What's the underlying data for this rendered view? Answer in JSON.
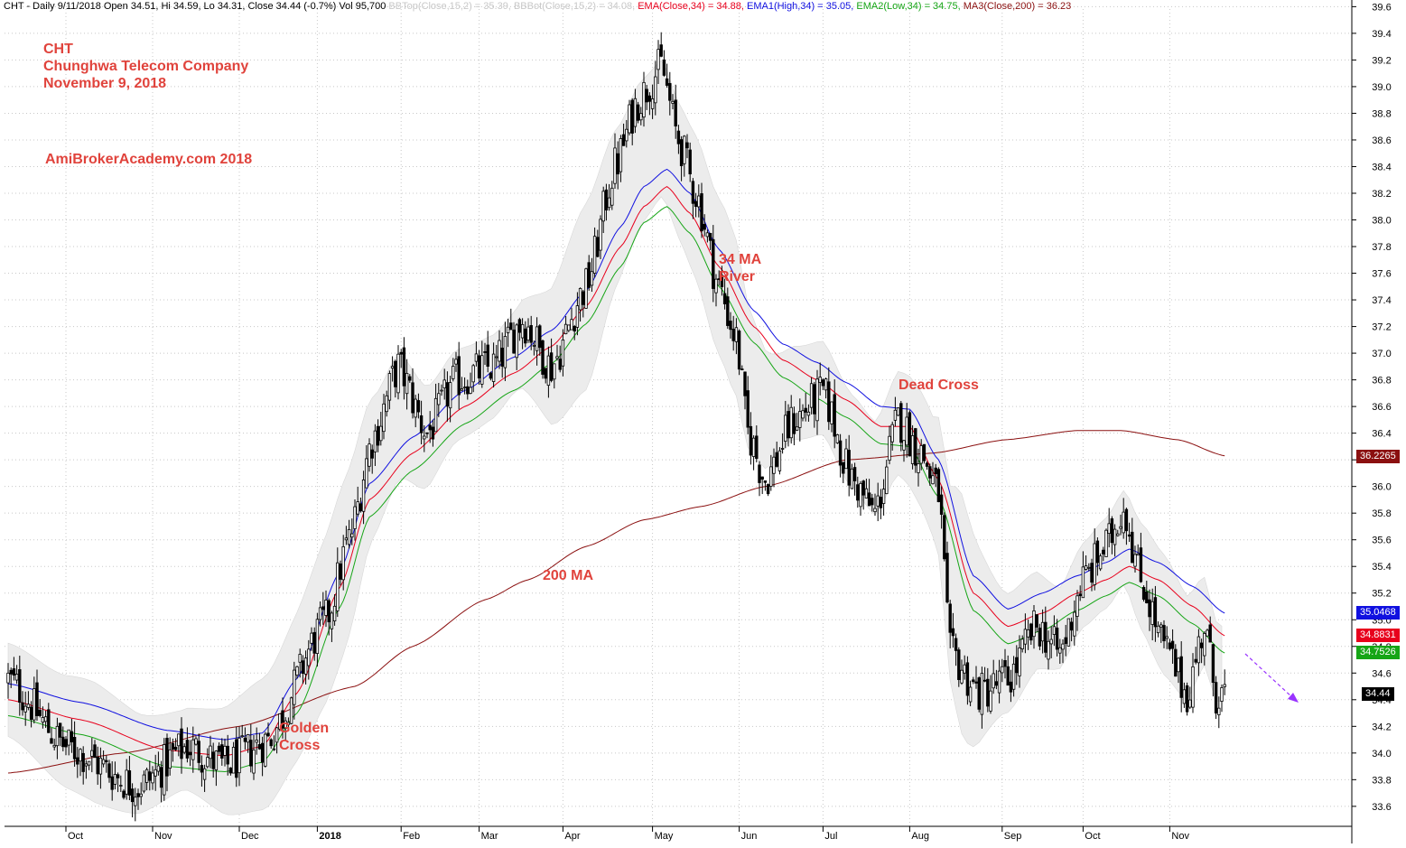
{
  "header": {
    "prefix": "CHT - Daily 9/11/2018 Open 34.51, Hi 34.59, Lo 34.31, Close 34.44 (-0.7%) Vol 95,700",
    "bbtop": "BBTop(Close,15,2) = 35.39,",
    "bbbot": "BBBot(Close,15,2) = 34.08,",
    "ema": "EMA(Close,34) = 34.88,",
    "ema1": "EMA1(High,34) = 35.05,",
    "ema2": "EMA2(Low,34) = 34.75,",
    "ma3": "MA3(Close,200) = 36.23"
  },
  "annotations": {
    "symbol": "CHT",
    "company": "Chunghwa Telecom Company",
    "date": "November 9, 2018",
    "site": "AmiBrokerAcademy.com  2018",
    "river": "34 MA\nRiver",
    "dead_cross": "Dead Cross",
    "ma200": "200 MA",
    "golden_cross": "Golden\nCross"
  },
  "colors": {
    "candle": "#000000",
    "band_fill": "#ececec",
    "ema_close": "#e8001c",
    "ema_high": "#1010e0",
    "ema_low": "#16a516",
    "ma200": "#8b1010",
    "annotation": "#e0433c",
    "arrow": "#9933ff",
    "grid": "#c8c8c8"
  },
  "chart_data": {
    "type": "candlestick",
    "x_months": [
      "Oct",
      "Nov",
      "Dec",
      "2018",
      "Feb",
      "Mar",
      "Apr",
      "May",
      "Jun",
      "Jul",
      "Aug",
      "Sep",
      "Oct",
      "Nov"
    ],
    "y_ticks": [
      33.6,
      33.8,
      34.0,
      34.2,
      34.4,
      34.6,
      34.8,
      35.0,
      35.2,
      35.4,
      35.6,
      35.8,
      36.0,
      36.2,
      36.4,
      36.6,
      36.8,
      37.0,
      37.2,
      37.4,
      37.6,
      37.8,
      38.0,
      38.2,
      38.4,
      38.6,
      38.8,
      39.0,
      39.2,
      39.4,
      39.6
    ],
    "ylim": [
      33.45,
      39.65
    ],
    "last_values": {
      "ma200": "36.2265",
      "ema_high": "35.0468",
      "ema_close": "34.8831",
      "ema_low": "34.7526",
      "close": "34.44"
    },
    "price_path": [
      [
        0,
        34.55
      ],
      [
        20,
        34.05
      ],
      [
        45,
        33.75
      ],
      [
        62,
        34.05
      ],
      [
        75,
        33.9
      ],
      [
        90,
        34.1
      ],
      [
        110,
        35.0
      ],
      [
        118,
        35.6
      ],
      [
        126,
        36.35
      ],
      [
        135,
        36.9
      ],
      [
        145,
        36.4
      ],
      [
        155,
        36.8
      ],
      [
        168,
        36.9
      ],
      [
        178,
        37.25
      ],
      [
        188,
        36.9
      ],
      [
        200,
        37.5
      ],
      [
        210,
        38.4
      ],
      [
        218,
        38.9
      ],
      [
        226,
        39.15
      ],
      [
        232,
        38.6
      ],
      [
        238,
        38.2
      ],
      [
        246,
        37.5
      ],
      [
        252,
        37.1
      ],
      [
        256,
        36.4
      ],
      [
        262,
        36.05
      ],
      [
        272,
        36.5
      ],
      [
        282,
        36.7
      ],
      [
        292,
        36.05
      ],
      [
        300,
        35.8
      ],
      [
        308,
        36.5
      ],
      [
        316,
        36.25
      ],
      [
        322,
        35.95
      ],
      [
        326,
        34.75
      ],
      [
        336,
        34.45
      ],
      [
        346,
        34.55
      ],
      [
        356,
        34.95
      ],
      [
        364,
        34.75
      ],
      [
        372,
        35.3
      ],
      [
        380,
        35.55
      ],
      [
        386,
        35.85
      ],
      [
        392,
        35.3
      ],
      [
        400,
        34.8
      ],
      [
        408,
        34.45
      ],
      [
        414,
        34.95
      ],
      [
        418,
        34.45
      ],
      [
        421,
        34.44
      ]
    ],
    "ema_close_path": [
      [
        0,
        34.4
      ],
      [
        25,
        34.25
      ],
      [
        55,
        34.02
      ],
      [
        75,
        33.98
      ],
      [
        88,
        34.05
      ],
      [
        100,
        34.45
      ],
      [
        115,
        35.25
      ],
      [
        125,
        35.9
      ],
      [
        140,
        36.25
      ],
      [
        158,
        36.6
      ],
      [
        175,
        36.85
      ],
      [
        188,
        37.05
      ],
      [
        200,
        37.35
      ],
      [
        212,
        37.8
      ],
      [
        220,
        38.1
      ],
      [
        228,
        38.25
      ],
      [
        236,
        38.05
      ],
      [
        246,
        37.65
      ],
      [
        258,
        37.2
      ],
      [
        268,
        36.95
      ],
      [
        280,
        36.8
      ],
      [
        290,
        36.65
      ],
      [
        302,
        36.45
      ],
      [
        312,
        36.45
      ],
      [
        322,
        36.05
      ],
      [
        334,
        35.2
      ],
      [
        346,
        34.95
      ],
      [
        358,
        35.05
      ],
      [
        370,
        35.2
      ],
      [
        380,
        35.3
      ],
      [
        388,
        35.4
      ],
      [
        398,
        35.3
      ],
      [
        410,
        35.1
      ],
      [
        421,
        34.88
      ]
    ],
    "ema_high_path": [
      [
        0,
        34.52
      ],
      [
        25,
        34.38
      ],
      [
        55,
        34.17
      ],
      [
        75,
        34.1
      ],
      [
        88,
        34.15
      ],
      [
        100,
        34.56
      ],
      [
        115,
        35.37
      ],
      [
        125,
        36.02
      ],
      [
        140,
        36.37
      ],
      [
        158,
        36.72
      ],
      [
        175,
        36.97
      ],
      [
        188,
        37.17
      ],
      [
        200,
        37.47
      ],
      [
        212,
        37.95
      ],
      [
        220,
        38.25
      ],
      [
        228,
        38.38
      ],
      [
        236,
        38.2
      ],
      [
        246,
        37.78
      ],
      [
        258,
        37.32
      ],
      [
        268,
        37.07
      ],
      [
        280,
        36.93
      ],
      [
        290,
        36.78
      ],
      [
        302,
        36.6
      ],
      [
        312,
        36.58
      ],
      [
        322,
        36.2
      ],
      [
        334,
        35.33
      ],
      [
        346,
        35.08
      ],
      [
        358,
        35.2
      ],
      [
        370,
        35.33
      ],
      [
        380,
        35.43
      ],
      [
        388,
        35.53
      ],
      [
        398,
        35.43
      ],
      [
        410,
        35.25
      ],
      [
        421,
        35.05
      ]
    ],
    "ema_low_path": [
      [
        0,
        34.28
      ],
      [
        25,
        34.14
      ],
      [
        55,
        33.9
      ],
      [
        75,
        33.86
      ],
      [
        88,
        33.93
      ],
      [
        100,
        34.3
      ],
      [
        115,
        35.1
      ],
      [
        125,
        35.77
      ],
      [
        140,
        36.12
      ],
      [
        158,
        36.47
      ],
      [
        175,
        36.72
      ],
      [
        188,
        36.92
      ],
      [
        200,
        37.22
      ],
      [
        212,
        37.65
      ],
      [
        220,
        37.98
      ],
      [
        228,
        38.1
      ],
      [
        236,
        37.9
      ],
      [
        246,
        37.5
      ],
      [
        258,
        37.08
      ],
      [
        268,
        36.82
      ],
      [
        280,
        36.66
      ],
      [
        290,
        36.52
      ],
      [
        302,
        36.32
      ],
      [
        312,
        36.3
      ],
      [
        322,
        35.92
      ],
      [
        334,
        35.07
      ],
      [
        346,
        34.82
      ],
      [
        358,
        34.92
      ],
      [
        370,
        35.07
      ],
      [
        380,
        35.18
      ],
      [
        388,
        35.28
      ],
      [
        398,
        35.18
      ],
      [
        410,
        34.97
      ],
      [
        421,
        34.75
      ]
    ],
    "ma200_path": [
      [
        0,
        33.85
      ],
      [
        40,
        34.0
      ],
      [
        80,
        34.2
      ],
      [
        120,
        34.5
      ],
      [
        140,
        34.8
      ],
      [
        165,
        35.15
      ],
      [
        180,
        35.3
      ],
      [
        200,
        35.55
      ],
      [
        220,
        35.75
      ],
      [
        240,
        35.85
      ],
      [
        262,
        36.0
      ],
      [
        290,
        36.2
      ],
      [
        320,
        36.25
      ],
      [
        345,
        36.35
      ],
      [
        370,
        36.42
      ],
      [
        385,
        36.42
      ],
      [
        405,
        36.35
      ],
      [
        421,
        36.23
      ]
    ],
    "band_width_path": [
      [
        0,
        0.35
      ],
      [
        30,
        0.45
      ],
      [
        60,
        0.3
      ],
      [
        90,
        0.5
      ],
      [
        115,
        0.65
      ],
      [
        130,
        0.5
      ],
      [
        150,
        0.35
      ],
      [
        175,
        0.3
      ],
      [
        200,
        0.7
      ],
      [
        215,
        0.55
      ],
      [
        230,
        0.5
      ],
      [
        250,
        0.6
      ],
      [
        270,
        0.35
      ],
      [
        300,
        0.35
      ],
      [
        320,
        0.45
      ],
      [
        330,
        0.9
      ],
      [
        345,
        0.45
      ],
      [
        365,
        0.3
      ],
      [
        385,
        0.35
      ],
      [
        400,
        0.45
      ],
      [
        421,
        0.28
      ]
    ]
  }
}
